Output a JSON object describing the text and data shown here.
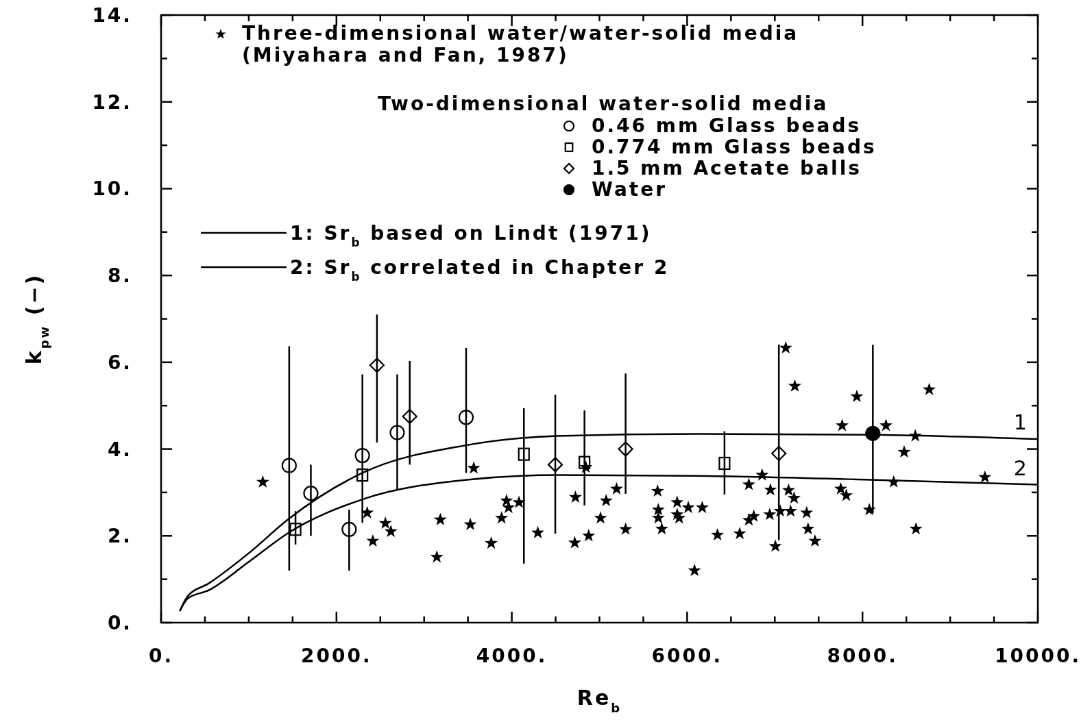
{
  "chart_data": {
    "type": "scatter",
    "xlabel": "Re$_{b}$",
    "ylabel": "k$_{pw}$ (−)",
    "xlim": [
      0,
      10000
    ],
    "ylim": [
      0,
      14
    ],
    "xticks": [
      {
        "value": 0,
        "label": "0."
      },
      {
        "value": 500,
        "label": null
      },
      {
        "value": 1000,
        "label": null
      },
      {
        "value": 1500,
        "label": null
      },
      {
        "value": 2000,
        "label": "2000."
      },
      {
        "value": 2500,
        "label": null
      },
      {
        "value": 3000,
        "label": null
      },
      {
        "value": 3500,
        "label": null
      },
      {
        "value": 4000,
        "label": "4000."
      },
      {
        "value": 4500,
        "label": null
      },
      {
        "value": 5000,
        "label": null
      },
      {
        "value": 5500,
        "label": null
      },
      {
        "value": 6000,
        "label": "6000."
      },
      {
        "value": 6500,
        "label": null
      },
      {
        "value": 7000,
        "label": null
      },
      {
        "value": 7500,
        "label": null
      },
      {
        "value": 8000,
        "label": "8000."
      },
      {
        "value": 8500,
        "label": null
      },
      {
        "value": 9000,
        "label": null
      },
      {
        "value": 9500,
        "label": null
      },
      {
        "value": 10000,
        "label": "10000."
      }
    ],
    "yticks": [
      {
        "value": 0,
        "label": "0."
      },
      {
        "value": 1,
        "label": null
      },
      {
        "value": 2,
        "label": "2."
      },
      {
        "value": 3,
        "label": null
      },
      {
        "value": 4,
        "label": "4."
      },
      {
        "value": 5,
        "label": null
      },
      {
        "value": 6,
        "label": "6."
      },
      {
        "value": 7,
        "label": null
      },
      {
        "value": 8,
        "label": "8."
      },
      {
        "value": 9,
        "label": null
      },
      {
        "value": 10,
        "label": "10."
      },
      {
        "value": 11,
        "label": null
      },
      {
        "value": 12,
        "label": "12."
      },
      {
        "value": 13,
        "label": null
      },
      {
        "value": 14,
        "label": "14."
      }
    ],
    "legend": "top",
    "legend_title": "Two-dimensional water-solid media",
    "annotations": [
      {
        "text": "1",
        "x": 9800,
        "y": 4.23
      },
      {
        "text": "2",
        "x": 9800,
        "y": 3.18
      }
    ],
    "series": [
      {
        "name": "Three-dimensional water/water-solid media (Miyahara and Fan, 1987)",
        "marker": "star",
        "color": "#000000",
        "x": [
          1160,
          2351,
          2415,
          2558,
          2621,
          3145,
          3185,
          3527,
          3566,
          3765,
          3884,
          3940,
          3963,
          4082,
          4297,
          4726,
          4718,
          4845,
          4877,
          5012,
          5076,
          5195,
          5298,
          5663,
          5671,
          5671,
          5711,
          5886,
          5886,
          5909,
          6013,
          6084,
          6172,
          6346,
          6600,
          6704,
          6704,
          6760,
          6855,
          6942,
          6950,
          7006,
          7061,
          7125,
          7157,
          7180,
          7228,
          7220,
          7363,
          7379,
          7458,
          7752,
          7768,
          7815,
          7935,
          8078,
          8268,
          8356,
          8475,
          8602,
          8610,
          8761,
          9396
        ],
        "values": [
          3.24,
          2.53,
          1.88,
          2.29,
          2.1,
          1.51,
          2.37,
          2.26,
          3.56,
          1.83,
          2.41,
          2.81,
          2.65,
          2.77,
          2.07,
          2.89,
          1.84,
          3.58,
          2.0,
          2.41,
          2.81,
          3.08,
          2.15,
          3.03,
          2.6,
          2.41,
          2.16,
          2.77,
          2.49,
          2.41,
          2.65,
          1.2,
          2.65,
          2.02,
          2.05,
          3.18,
          2.36,
          2.45,
          3.4,
          2.49,
          3.06,
          1.76,
          2.57,
          6.33,
          3.05,
          2.57,
          5.45,
          2.87,
          2.53,
          2.16,
          1.88,
          3.08,
          4.54,
          2.93,
          5.21,
          2.6,
          4.54,
          3.24,
          3.93,
          4.3,
          2.16,
          5.37,
          3.35
        ]
      },
      {
        "name": "0.46 mm Glass beads",
        "marker": "circle",
        "color": "#000000",
        "x": [
          1461,
          1708,
          2145,
          2296,
          2693,
          3479
        ],
        "values": [
          3.62,
          2.98,
          2.15,
          3.85,
          4.38,
          4.73
        ],
        "errors": [
          [
            1.2,
            6.37
          ],
          [
            2.0,
            3.64
          ],
          [
            1.2,
            2.6
          ],
          [
            2.3,
            5.72
          ],
          [
            3.05,
            5.72
          ],
          [
            3.45,
            6.33
          ]
        ]
      },
      {
        "name": "0.774 mm Glass beads",
        "marker": "square",
        "color": "#000000",
        "x": [
          1533,
          2296,
          4138,
          4829,
          6426
        ],
        "values": [
          2.15,
          3.4,
          3.88,
          3.69,
          3.67
        ],
        "errors": [
          [
            1.8,
            2.57
          ],
          null,
          [
            1.36,
            4.94
          ],
          [
            2.7,
            4.89
          ],
          [
            2.95,
            4.41
          ]
        ]
      },
      {
        "name": "1.5 mm Acetate balls",
        "marker": "diamond",
        "color": "#000000",
        "x": [
          2462,
          2836,
          4496,
          5298,
          7046
        ],
        "values": [
          5.93,
          4.75,
          3.64,
          4.0,
          3.9
        ],
        "errors": [
          [
            4.15,
            7.1
          ],
          [
            3.64,
            6.03
          ],
          [
            2.05,
            5.25
          ],
          [
            2.97,
            5.74
          ],
          [
            1.9,
            6.41
          ]
        ]
      },
      {
        "name": "Water",
        "marker": "circle",
        "color": "#000000",
        "x": [
          8118
        ],
        "values": [
          4.36
        ],
        "errors": [
          [
            2.52,
            6.4
          ]
        ]
      },
      {
        "name": "1: Sr$_{b}$ based on Lindt (1971)",
        "type": "line",
        "line_style": "solid",
        "color": "#000000",
        "x": [
          214,
          300,
          548,
          1000,
          1461,
          2296,
          3487,
          4519,
          6108,
          8094,
          10000
        ],
        "values": [
          0.27,
          0.6,
          0.91,
          1.6,
          2.4,
          3.45,
          4.09,
          4.3,
          4.35,
          4.33,
          4.23
        ]
      },
      {
        "name": "2: Sr$_{b}$ correlated in Chapter 2",
        "type": "line",
        "line_style": "solid",
        "color": "#000000",
        "x": [
          214,
          300,
          548,
          1000,
          1461,
          2296,
          3487,
          4519,
          6108,
          8094,
          10000
        ],
        "values": [
          0.27,
          0.55,
          0.75,
          1.4,
          2.08,
          2.84,
          3.29,
          3.4,
          3.38,
          3.29,
          3.18
        ]
      }
    ]
  }
}
